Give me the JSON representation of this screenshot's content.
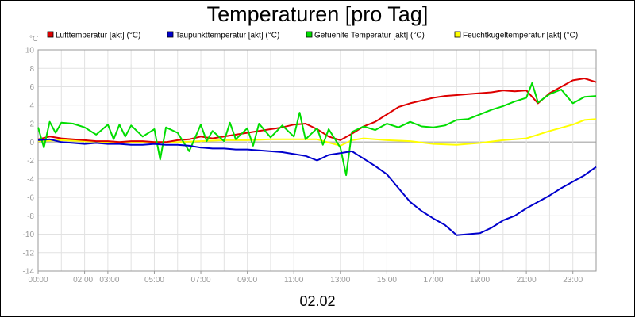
{
  "chart_data": {
    "type": "line",
    "title": "Temperaturen [pro Tag]",
    "ylabel": "°C",
    "xlabel": "02.02",
    "ylim": [
      -14,
      10
    ],
    "yticks": [
      10,
      8,
      6,
      4,
      2,
      0,
      -2,
      -4,
      -6,
      -8,
      -10,
      -12,
      -14
    ],
    "xlim": [
      0,
      24
    ],
    "xticks": [
      {
        "x": 0,
        "label": "00:00"
      },
      {
        "x": 2,
        "label": "02:00"
      },
      {
        "x": 3,
        "label": "03:00"
      },
      {
        "x": 5,
        "label": "05:00"
      },
      {
        "x": 7,
        "label": "07:00"
      },
      {
        "x": 9,
        "label": "09:00"
      },
      {
        "x": 11,
        "label": "11:00"
      },
      {
        "x": 13,
        "label": "13:00"
      },
      {
        "x": 15,
        "label": "15:00"
      },
      {
        "x": 17,
        "label": "17:00"
      },
      {
        "x": 19,
        "label": "19:00"
      },
      {
        "x": 21,
        "label": "21:00"
      },
      {
        "x": 23,
        "label": "23:00"
      }
    ],
    "grid": true,
    "legend_position": "top",
    "series": [
      {
        "name": "Lufttemperatur [akt] (°C)",
        "color": "#dd0000",
        "x": [
          0,
          0.5,
          1,
          1.5,
          2,
          2.5,
          3,
          3.5,
          4,
          4.5,
          5,
          5.5,
          6,
          6.5,
          7,
          7.5,
          8,
          8.5,
          9,
          9.5,
          10,
          10.5,
          11,
          11.5,
          12,
          12.5,
          13,
          13.5,
          14,
          14.5,
          15,
          15.5,
          16,
          16.5,
          17,
          17.5,
          18,
          18.5,
          19,
          19.5,
          20,
          20.5,
          21,
          21.5,
          22,
          22.5,
          23,
          23.5,
          24
        ],
        "y": [
          0.3,
          0.6,
          0.4,
          0.3,
          0.2,
          0.1,
          0.1,
          0.0,
          0.1,
          0.1,
          0.0,
          0.0,
          0.2,
          0.3,
          0.6,
          0.4,
          0.6,
          0.8,
          1.0,
          1.2,
          1.4,
          1.6,
          1.9,
          2.0,
          1.4,
          0.6,
          0.2,
          0.9,
          1.7,
          2.2,
          3.0,
          3.8,
          4.2,
          4.5,
          4.8,
          5.0,
          5.1,
          5.2,
          5.3,
          5.4,
          5.6,
          5.5,
          5.6,
          4.2,
          5.3,
          6.0,
          6.7,
          6.9,
          6.5
        ]
      },
      {
        "name": "Taupunkttemperatur [akt] (°C)",
        "color": "#0000cc",
        "x": [
          0,
          0.5,
          1,
          1.5,
          2,
          2.5,
          3,
          3.5,
          4,
          4.5,
          5,
          5.5,
          6,
          6.5,
          7,
          7.5,
          8,
          8.5,
          9,
          9.5,
          10,
          10.5,
          11,
          11.5,
          12,
          12.5,
          13,
          13.5,
          14,
          14.5,
          15,
          15.5,
          16,
          16.5,
          17,
          17.5,
          18,
          18.5,
          19,
          19.5,
          20,
          20.5,
          21,
          21.5,
          22,
          22.5,
          23,
          23.5,
          24
        ],
        "y": [
          0.2,
          0.3,
          0.0,
          -0.1,
          -0.2,
          -0.1,
          -0.2,
          -0.2,
          -0.3,
          -0.3,
          -0.2,
          -0.3,
          -0.3,
          -0.4,
          -0.6,
          -0.7,
          -0.7,
          -0.8,
          -0.8,
          -0.9,
          -1.0,
          -1.1,
          -1.3,
          -1.5,
          -2.0,
          -1.4,
          -1.2,
          -1.0,
          -1.8,
          -2.6,
          -3.5,
          -5.0,
          -6.5,
          -7.5,
          -8.3,
          -9.0,
          -10.1,
          -10.0,
          -9.9,
          -9.3,
          -8.5,
          -8.0,
          -7.2,
          -6.5,
          -5.8,
          -5.0,
          -4.3,
          -3.6,
          -2.7
        ]
      },
      {
        "name": "Gefuehlte Temperatur [akt] (°C)",
        "color": "#00dd00",
        "x": [
          0,
          0.25,
          0.5,
          0.75,
          1,
          1.5,
          2,
          2.5,
          3,
          3.25,
          3.5,
          3.75,
          4,
          4.5,
          5,
          5.25,
          5.5,
          6,
          6.5,
          7,
          7.25,
          7.5,
          8,
          8.25,
          8.5,
          9,
          9.25,
          9.5,
          10,
          10.5,
          11,
          11.25,
          11.5,
          12,
          12.25,
          12.5,
          13,
          13.25,
          13.5,
          14,
          14.5,
          15,
          15.5,
          16,
          16.5,
          17,
          17.5,
          18,
          18.5,
          19,
          19.5,
          20,
          20.5,
          21,
          21.25,
          21.5,
          22,
          22.5,
          23,
          23.5,
          24
        ],
        "y": [
          1.6,
          -0.6,
          2.2,
          1.0,
          2.1,
          2.0,
          1.6,
          0.8,
          1.9,
          0.3,
          1.9,
          0.6,
          1.8,
          0.6,
          1.4,
          -1.9,
          1.6,
          1.0,
          -1.0,
          1.9,
          0.1,
          1.2,
          0.1,
          2.1,
          0.3,
          1.5,
          -0.4,
          2.0,
          0.5,
          1.8,
          0.6,
          3.2,
          0.3,
          1.5,
          -0.3,
          1.4,
          -0.6,
          -3.6,
          1.1,
          1.7,
          1.3,
          2.0,
          1.6,
          2.2,
          1.7,
          1.6,
          1.8,
          2.4,
          2.5,
          3.0,
          3.5,
          3.9,
          4.4,
          4.8,
          6.4,
          4.3,
          5.2,
          5.7,
          4.2,
          4.9,
          5.0
        ]
      },
      {
        "name": "Feuchtkugeltemperatur [akt] (°C)",
        "color": "#ffff00",
        "x": [
          0,
          1,
          2,
          3,
          4,
          5,
          6,
          7,
          8,
          9,
          10,
          11,
          12,
          13,
          13.5,
          14,
          15,
          16,
          17,
          18,
          19,
          20,
          21,
          22,
          23,
          23.5,
          24
        ],
        "y": [
          0.1,
          0.2,
          0.1,
          0.0,
          0.0,
          0.0,
          0.0,
          0.1,
          0.2,
          0.2,
          0.3,
          0.3,
          0.3,
          -0.4,
          0.2,
          0.4,
          0.2,
          0.1,
          -0.2,
          -0.3,
          -0.1,
          0.2,
          0.4,
          1.2,
          1.9,
          2.4,
          2.5
        ]
      }
    ]
  }
}
